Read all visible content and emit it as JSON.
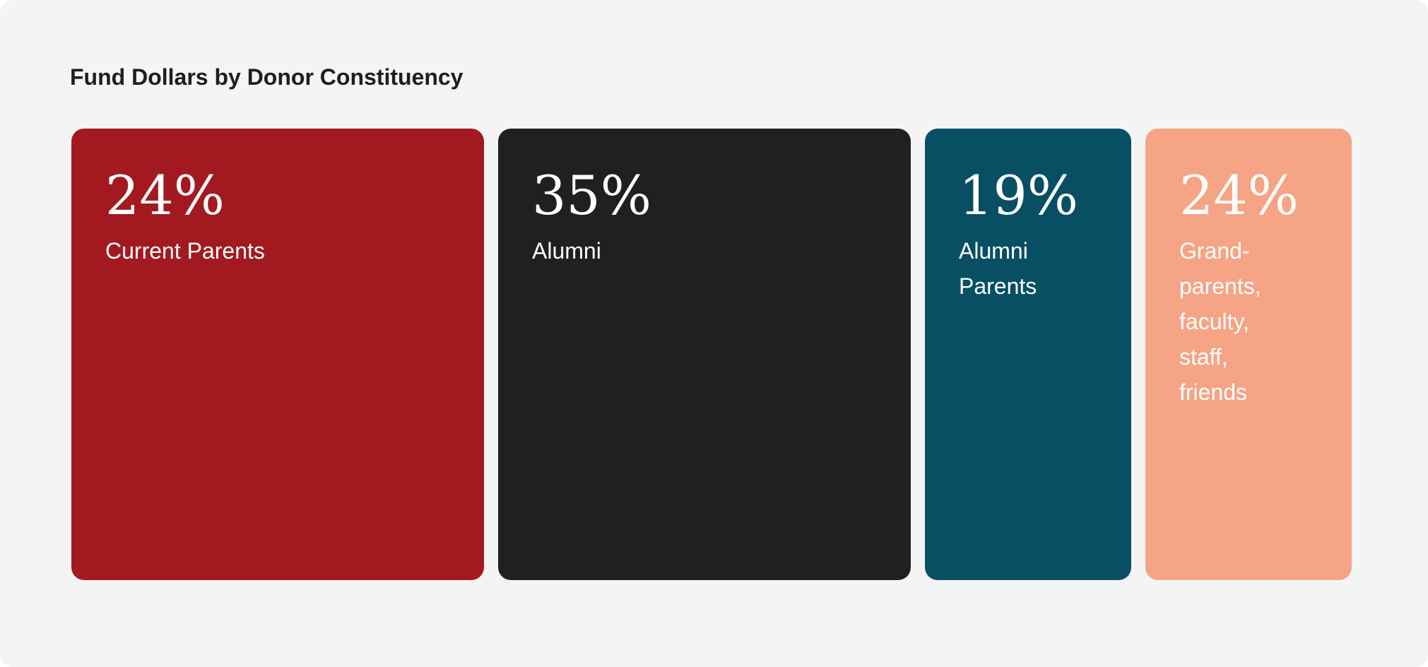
{
  "chart_data": {
    "type": "treemap",
    "title": "Fund Dollars by Donor Constituency",
    "categories": [
      "Current Parents",
      "Alumni",
      "Alumni Parents",
      "Grand-parents, faculty, staff, friends"
    ],
    "values": [
      24,
      35,
      19,
      24
    ],
    "value_labels": [
      "24%",
      "35%",
      "19%",
      "24%"
    ],
    "colors": [
      "#a21a20",
      "#221f20",
      "#084f63",
      "#f5a485"
    ]
  }
}
